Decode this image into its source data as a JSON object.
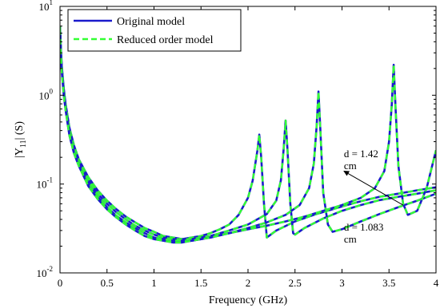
{
  "chart_data": {
    "type": "line",
    "xlabel": "Frequency (GHz)",
    "ylabel_base": "|Y",
    "ylabel_sub": "11",
    "ylabel_tail": "| (S)",
    "xlim": [
      0,
      4
    ],
    "ylim": [
      0.01,
      10
    ],
    "yscale": "log",
    "grid": false,
    "legend_placement": "top-left",
    "x_ticks": [
      {
        "value": 0,
        "label": "0"
      },
      {
        "value": 0.5,
        "label": "0.5"
      },
      {
        "value": 1,
        "label": "1"
      },
      {
        "value": 1.5,
        "label": "1.5"
      },
      {
        "value": 2,
        "label": "2"
      },
      {
        "value": 2.5,
        "label": "2.5"
      },
      {
        "value": 3,
        "label": "3"
      },
      {
        "value": 3.5,
        "label": "3.5"
      },
      {
        "value": 4,
        "label": "4"
      }
    ],
    "y_ticks": [
      {
        "value": 0.01,
        "base": "10",
        "exp": "-2"
      },
      {
        "value": 0.1,
        "base": "10",
        "exp": "-1"
      },
      {
        "value": 1,
        "base": "10",
        "exp": "0"
      },
      {
        "value": 10,
        "base": "10",
        "exp": "1"
      }
    ],
    "legend": [
      {
        "label": "Original model",
        "color": "#1a1acc",
        "style": "solid"
      },
      {
        "label": "Reduced order model",
        "color": "#33ff33",
        "style": "dashed"
      }
    ],
    "series": [
      {
        "name": "Original model",
        "x": [
          0,
          0.01,
          0.02,
          0.04,
          0.06,
          0.1,
          0.15,
          0.2,
          0.3,
          0.4,
          0.5,
          0.6,
          0.7,
          0.8,
          0.9,
          1.0,
          1.1,
          1.2,
          1.3,
          1.4,
          1.5,
          1.6,
          1.7,
          1.8,
          1.9,
          2.0,
          2.05,
          2.1,
          2.12,
          2.14,
          2.17,
          2.2,
          2.3,
          2.5,
          2.7,
          2.9,
          3.0,
          3.2,
          3.4,
          3.6,
          3.8,
          4.0
        ],
        "y": [
          6.0,
          3.2,
          2.1,
          1.2,
          0.8,
          0.43,
          0.27,
          0.19,
          0.12,
          0.085,
          0.065,
          0.052,
          0.043,
          0.037,
          0.032,
          0.029,
          0.026,
          0.025,
          0.024,
          0.025,
          0.026,
          0.028,
          0.031,
          0.035,
          0.045,
          0.07,
          0.11,
          0.24,
          0.36,
          0.2,
          0.06,
          0.025,
          0.03,
          0.038,
          0.045,
          0.052,
          0.056,
          0.064,
          0.072,
          0.078,
          0.085,
          0.092
        ]
      },
      {
        "name": "Original model",
        "x": [
          0,
          0.01,
          0.02,
          0.04,
          0.06,
          0.1,
          0.15,
          0.2,
          0.3,
          0.4,
          0.5,
          0.6,
          0.7,
          0.8,
          0.9,
          1.0,
          1.1,
          1.2,
          1.3,
          1.4,
          1.5,
          1.6,
          1.8,
          2.0,
          2.2,
          2.3,
          2.35,
          2.38,
          2.4,
          2.42,
          2.45,
          2.48,
          2.5,
          2.6,
          2.8,
          3.0,
          3.2,
          3.4,
          3.6,
          3.8,
          4.0
        ],
        "y": [
          6.0,
          3.0,
          2.0,
          1.1,
          0.75,
          0.4,
          0.25,
          0.18,
          0.11,
          0.078,
          0.06,
          0.048,
          0.04,
          0.034,
          0.03,
          0.027,
          0.025,
          0.024,
          0.024,
          0.024,
          0.025,
          0.026,
          0.03,
          0.035,
          0.046,
          0.065,
          0.11,
          0.25,
          0.52,
          0.25,
          0.06,
          0.028,
          0.027,
          0.032,
          0.041,
          0.05,
          0.058,
          0.066,
          0.072,
          0.078,
          0.085
        ]
      },
      {
        "name": "Original model",
        "x": [
          0,
          0.01,
          0.02,
          0.04,
          0.06,
          0.1,
          0.15,
          0.2,
          0.3,
          0.4,
          0.5,
          0.6,
          0.7,
          0.8,
          0.9,
          1.0,
          1.1,
          1.2,
          1.3,
          1.4,
          1.5,
          1.6,
          1.8,
          2.0,
          2.2,
          2.4,
          2.55,
          2.65,
          2.7,
          2.73,
          2.75,
          2.77,
          2.8,
          2.85,
          2.9,
          3.0,
          3.2,
          3.4,
          3.6,
          3.8,
          4.0
        ],
        "y": [
          5.8,
          2.9,
          1.9,
          1.05,
          0.7,
          0.37,
          0.23,
          0.17,
          0.1,
          0.072,
          0.055,
          0.044,
          0.037,
          0.032,
          0.028,
          0.025,
          0.024,
          0.023,
          0.023,
          0.023,
          0.024,
          0.025,
          0.028,
          0.032,
          0.037,
          0.045,
          0.058,
          0.09,
          0.17,
          0.45,
          1.1,
          0.4,
          0.08,
          0.035,
          0.029,
          0.031,
          0.038,
          0.046,
          0.055,
          0.065,
          0.078
        ]
      },
      {
        "name": "Original model",
        "x": [
          0,
          0.01,
          0.02,
          0.04,
          0.06,
          0.1,
          0.15,
          0.2,
          0.3,
          0.4,
          0.5,
          0.6,
          0.7,
          0.8,
          0.9,
          1.0,
          1.1,
          1.2,
          1.3,
          1.4,
          1.5,
          1.6,
          1.8,
          2.0,
          2.2,
          2.4,
          2.6,
          2.8,
          3.0,
          3.2,
          3.35,
          3.45,
          3.5,
          3.53,
          3.55,
          3.57,
          3.6,
          3.65,
          3.7,
          3.8,
          3.9,
          4.0
        ],
        "y": [
          5.5,
          2.8,
          1.8,
          1.0,
          0.68,
          0.35,
          0.22,
          0.16,
          0.095,
          0.068,
          0.052,
          0.042,
          0.035,
          0.03,
          0.026,
          0.024,
          0.023,
          0.022,
          0.022,
          0.023,
          0.024,
          0.025,
          0.028,
          0.031,
          0.034,
          0.038,
          0.043,
          0.05,
          0.058,
          0.07,
          0.09,
          0.14,
          0.3,
          0.8,
          2.2,
          0.7,
          0.16,
          0.06,
          0.045,
          0.05,
          0.09,
          0.24
        ]
      }
    ],
    "annotations": [
      {
        "text_lines": [
          "d = 1.42",
          "cm"
        ],
        "x": 3.02,
        "y": 0.2
      },
      {
        "text_lines": [
          "d = 1.083",
          "cm"
        ],
        "x": 3.02,
        "y": 0.03
      }
    ],
    "arrow": {
      "from": [
        3.65,
        0.058
      ],
      "to": [
        3.02,
        0.14
      ]
    }
  }
}
